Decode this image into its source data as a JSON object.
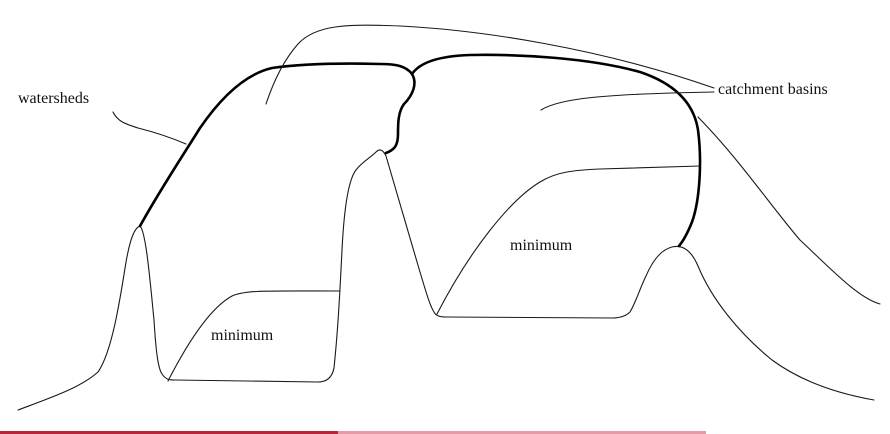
{
  "labels": {
    "watersheds": "watersheds",
    "catchment_basins": "catchment basins",
    "minimum_left": "minimum",
    "minimum_right": "minimum"
  },
  "colors": {
    "line": "#1a1a1a",
    "watershed_line": "#000000",
    "footer_bar_left": "#b8243a",
    "footer_bar_right": "#e59aa6"
  }
}
